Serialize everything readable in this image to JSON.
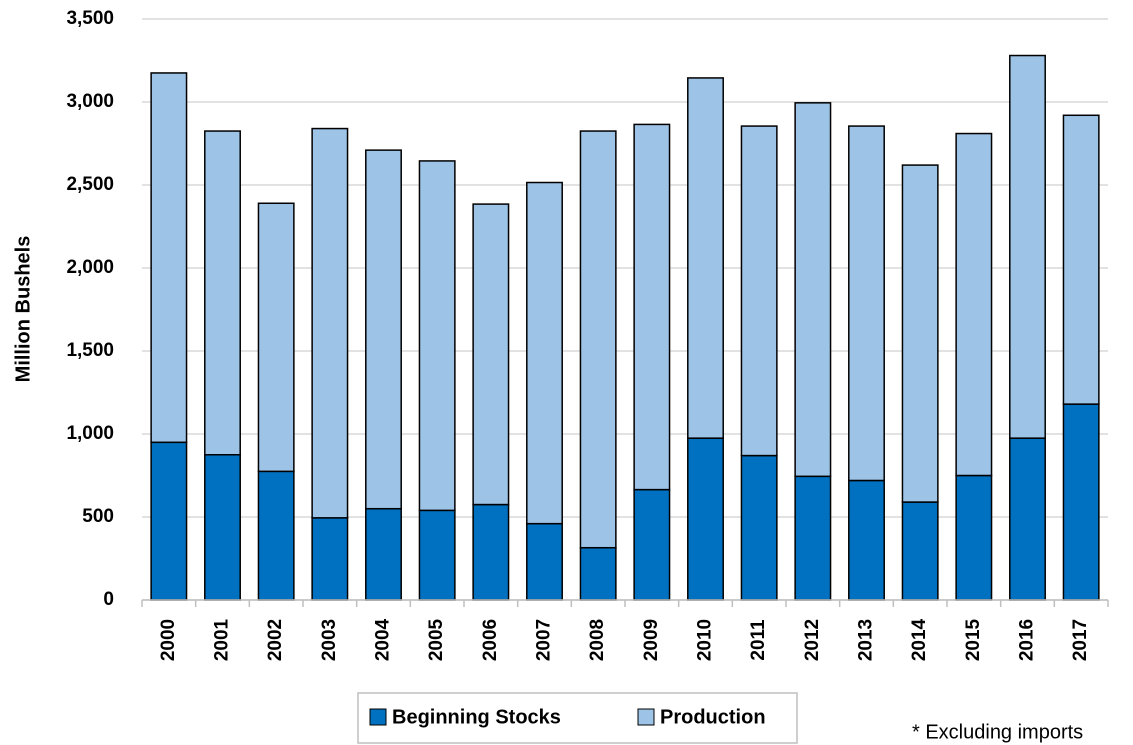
{
  "chart_data": {
    "type": "stacked_bar",
    "y_label": "Million Bushels",
    "annotation": "* Excluding imports",
    "categories": [
      "2000",
      "2001",
      "2002",
      "2003",
      "2004",
      "2005",
      "2006",
      "2007",
      "2008",
      "2009",
      "2010",
      "2011",
      "2012",
      "2013",
      "2014",
      "2015",
      "2016",
      "2017"
    ],
    "series": [
      {
        "name": "Beginning Stocks",
        "color": "#0070c0",
        "values": [
          950,
          875,
          775,
          495,
          550,
          540,
          575,
          460,
          315,
          665,
          975,
          870,
          745,
          720,
          590,
          750,
          975,
          1180
        ]
      },
      {
        "name": "Production",
        "color": "#9dc3e6",
        "values": [
          2225,
          1950,
          1615,
          2345,
          2160,
          2105,
          1810,
          2055,
          2510,
          2200,
          2170,
          1985,
          2250,
          2135,
          2030,
          2060,
          2305,
          1740
        ]
      }
    ],
    "ylim": [
      0,
      3500
    ],
    "yticks": [
      0,
      {
        "value": 500,
        "label": "500"
      },
      {
        "value": 1000,
        "label": "1,000"
      },
      {
        "value": 1500,
        "label": "1,500"
      },
      {
        "value": 2000,
        "label": "2,000"
      },
      {
        "value": 2500,
        "label": "2,500"
      },
      {
        "value": 3000,
        "label": "3,000"
      },
      {
        "value": 3500,
        "label": "3,500"
      }
    ],
    "grid": true,
    "legend": "bottom"
  }
}
